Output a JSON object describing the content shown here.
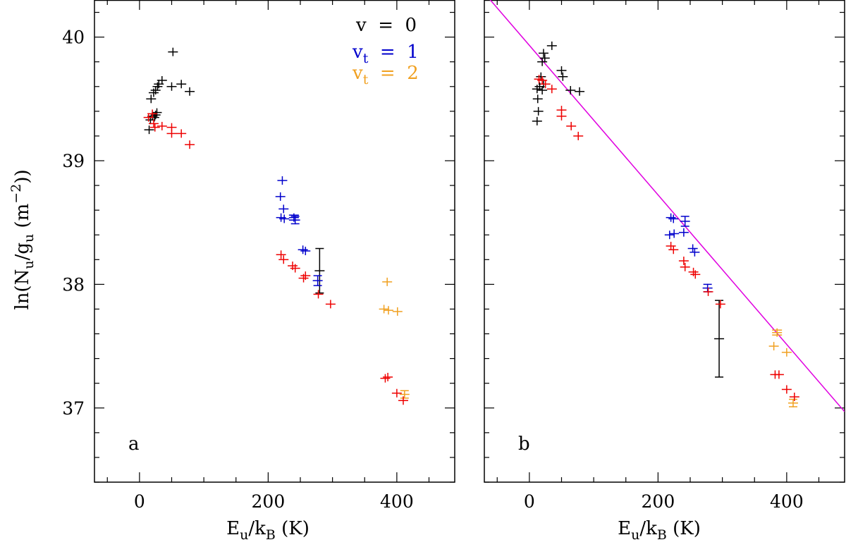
{
  "figure": {
    "ylabel": "ln(N",
    "ylabel_sub_u": "u",
    "ylabel_mid": "/g",
    "ylabel_sub_u2": "u",
    "ylabel_unit_open": " (m",
    "ylabel_sup": "−2",
    "ylabel_unit_close": "))",
    "xlabel_E": "E",
    "xlabel_sub_u": "u",
    "xlabel_mid": "/k",
    "xlabel_sub_B": "B",
    "xlabel_unit": " (K)"
  },
  "legend": {
    "v0": {
      "text": "v  =  0",
      "color": "#000000"
    },
    "vt1": {
      "prefix": "v",
      "sub": "t",
      "text": "  =  1",
      "color": "#0000cc"
    },
    "vt2": {
      "prefix": "v",
      "sub": "t",
      "text": "  =  2",
      "color": "#f0a020"
    }
  },
  "colors": {
    "black": "#000000",
    "blue": "#0000cc",
    "orange": "#f0a020",
    "red": "#ee0000",
    "fit": "#e000e0"
  },
  "chart_data": [
    {
      "type": "scatter",
      "panel_label": "a",
      "xlabel": "Eu/kB (K)",
      "ylabel": "ln(Nu/gu (m−2))",
      "xlim": [
        -70,
        490
      ],
      "ylim": [
        36.4,
        40.3
      ],
      "xticks": [
        0,
        200,
        400
      ],
      "yticks": [
        37,
        38,
        39,
        40
      ],
      "series": [
        {
          "name": "v = 0",
          "color": "black",
          "points": [
            [
              15,
              39.25,
              0.01
            ],
            [
              17,
              39.33,
              0.01
            ],
            [
              20,
              39.36,
              0.01
            ],
            [
              23,
              39.35,
              0.01
            ],
            [
              25,
              39.37,
              0.01
            ],
            [
              27,
              39.39,
              0.01
            ],
            [
              18,
              39.5,
              0.01
            ],
            [
              22,
              39.55,
              0.01
            ],
            [
              25,
              39.57,
              0.01
            ],
            [
              28,
              39.6,
              0.01
            ],
            [
              30,
              39.62,
              0.01
            ],
            [
              35,
              39.65,
              0.01
            ],
            [
              50,
              39.6,
              0.01
            ],
            [
              65,
              39.62,
              0.01
            ],
            [
              78,
              39.56,
              0.01
            ],
            [
              52,
              39.88,
              0.01
            ],
            [
              280,
              38.11,
              0.18
            ]
          ]
        },
        {
          "name": "vt = 1",
          "color": "blue",
          "points": [
            [
              222,
              38.84,
              0.01
            ],
            [
              219,
              38.71,
              0.01
            ],
            [
              224,
              38.61,
              0.01
            ],
            [
              220,
              38.54,
              0.01
            ],
            [
              225,
              38.53,
              0.01
            ],
            [
              240,
              38.54,
              0.02
            ],
            [
              242,
              38.52,
              0.03
            ],
            [
              254,
              38.28,
              0.01
            ],
            [
              258,
              38.27,
              0.01
            ],
            [
              277,
              38.03,
              0.04
            ]
          ]
        },
        {
          "name": "vt = 2",
          "color": "orange",
          "points": [
            [
              385,
              38.02,
              0.01
            ],
            [
              380,
              37.8,
              0.01
            ],
            [
              387,
              37.79,
              0.01
            ],
            [
              401,
              37.78,
              0.01
            ],
            [
              412,
              37.11,
              0.03
            ]
          ]
        },
        {
          "name": "other (red)",
          "color": "red",
          "points": [
            [
              14,
              39.35,
              0.01
            ],
            [
              20,
              39.38,
              0.01
            ],
            [
              22,
              39.3,
              0.01
            ],
            [
              24,
              39.27,
              0.01
            ],
            [
              35,
              39.28,
              0.01
            ],
            [
              50,
              39.27,
              0.01
            ],
            [
              50,
              39.22,
              0.01
            ],
            [
              65,
              39.22,
              0.01
            ],
            [
              78,
              39.13,
              0.01
            ],
            [
              220,
              38.24,
              0.01
            ],
            [
              224,
              38.2,
              0.01
            ],
            [
              238,
              38.15,
              0.01
            ],
            [
              242,
              38.13,
              0.01
            ],
            [
              255,
              38.05,
              0.01
            ],
            [
              258,
              38.07,
              0.01
            ],
            [
              278,
              37.92,
              0.01
            ],
            [
              297,
              37.84,
              0.01
            ],
            [
              382,
              37.24,
              0.01
            ],
            [
              386,
              37.25,
              0.01
            ],
            [
              400,
              37.12,
              0.01
            ],
            [
              410,
              37.06,
              0.01
            ]
          ]
        }
      ]
    },
    {
      "type": "scatter",
      "panel_label": "b",
      "xlabel": "Eu/kB (K)",
      "ylabel": "ln(Nu/gu (m−2))",
      "xlim": [
        -70,
        490
      ],
      "ylim": [
        36.4,
        40.3
      ],
      "xticks": [
        0,
        200,
        400
      ],
      "yticks": [
        37,
        38,
        39,
        40
      ],
      "fit_line": {
        "x": [
          -64,
          490
        ],
        "y": [
          40.32,
          36.97
        ]
      },
      "series": [
        {
          "name": "v = 0",
          "color": "black",
          "points": [
            [
              12,
              39.32,
              0.01
            ],
            [
              14,
              39.4,
              0.01
            ],
            [
              13,
              39.5,
              0.01
            ],
            [
              12,
              39.58,
              0.01
            ],
            [
              16,
              39.6,
              0.01
            ],
            [
              20,
              39.57,
              0.01
            ],
            [
              18,
              39.68,
              0.01
            ],
            [
              22,
              39.62,
              0.01
            ],
            [
              20,
              39.8,
              0.01
            ],
            [
              24,
              39.83,
              0.01
            ],
            [
              22,
              39.87,
              0.01
            ],
            [
              35,
              39.93,
              0.01
            ],
            [
              50,
              39.73,
              0.01
            ],
            [
              52,
              39.68,
              0.01
            ],
            [
              64,
              39.57,
              0.01
            ],
            [
              78,
              39.56,
              0.01
            ],
            [
              295,
              37.56,
              0.31
            ]
          ]
        },
        {
          "name": "vt = 1",
          "color": "blue",
          "points": [
            [
              220,
              38.54,
              0.01
            ],
            [
              224,
              38.53,
              0.01
            ],
            [
              225,
              38.41,
              0.01
            ],
            [
              218,
              38.4,
              0.01
            ],
            [
              240,
              38.42,
              0.01
            ],
            [
              242,
              38.51,
              0.04
            ],
            [
              254,
              38.29,
              0.01
            ],
            [
              257,
              38.26,
              0.01
            ],
            [
              277,
              37.97,
              0.03
            ]
          ]
        },
        {
          "name": "vt = 2",
          "color": "orange",
          "points": [
            [
              385,
              37.61,
              0.02
            ],
            [
              380,
              37.5,
              0.01
            ],
            [
              400,
              37.45,
              0.01
            ],
            [
              410,
              37.04,
              0.03
            ]
          ]
        },
        {
          "name": "other (red)",
          "color": "red",
          "points": [
            [
              15,
              39.66,
              0.01
            ],
            [
              20,
              39.65,
              0.01
            ],
            [
              25,
              39.62,
              0.01
            ],
            [
              35,
              39.58,
              0.01
            ],
            [
              50,
              39.41,
              0.01
            ],
            [
              50,
              39.36,
              0.01
            ],
            [
              65,
              39.28,
              0.01
            ],
            [
              76,
              39.2,
              0.01
            ],
            [
              220,
              38.31,
              0.01
            ],
            [
              224,
              38.28,
              0.01
            ],
            [
              240,
              38.19,
              0.01
            ],
            [
              242,
              38.14,
              0.01
            ],
            [
              255,
              38.1,
              0.01
            ],
            [
              258,
              38.08,
              0.01
            ],
            [
              278,
              37.94,
              0.01
            ],
            [
              297,
              37.84,
              0.01
            ],
            [
              382,
              37.27,
              0.01
            ],
            [
              388,
              37.27,
              0.01
            ],
            [
              400,
              37.15,
              0.01
            ],
            [
              412,
              37.09,
              0.01
            ]
          ]
        }
      ]
    }
  ]
}
